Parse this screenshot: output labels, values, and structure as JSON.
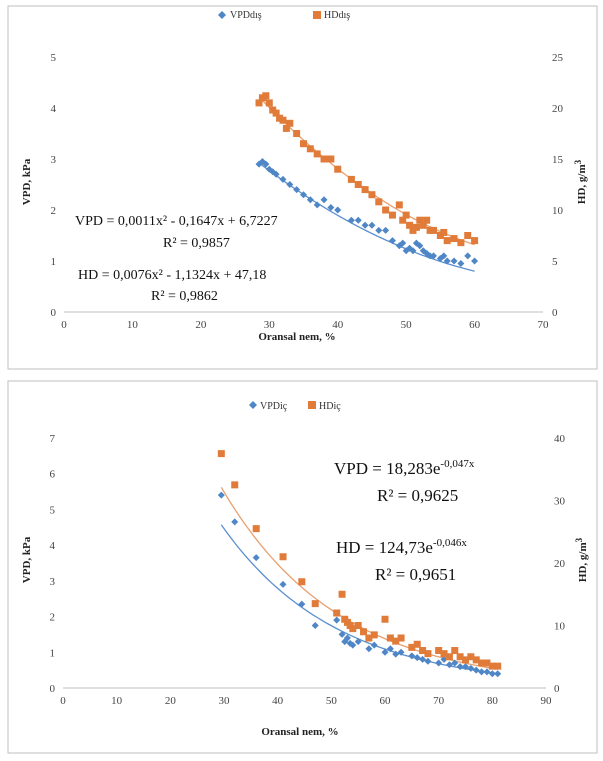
{
  "colors": {
    "vpd": "#4f86c6",
    "hd": "#e07b39",
    "vpd_trend": "#5a8fcf",
    "hd_trend": "#e8a070"
  },
  "chart_data": [
    {
      "type": "scatter",
      "legend": {
        "vpd": "VPDdış",
        "hd": "HDdış",
        "placement": "top-center"
      },
      "xlabel": "Oransal nem, %",
      "ylabel_left": "VPD, kPa",
      "ylabel_right": {
        "text": "HD, g/m",
        "sup": "3"
      },
      "xlim": [
        0,
        70
      ],
      "xticks": [
        0,
        10,
        20,
        30,
        40,
        50,
        60,
        70
      ],
      "ylim_left": [
        0,
        5
      ],
      "yticks_left": [
        0,
        1,
        2,
        3,
        4,
        5
      ],
      "ylim_right": [
        0,
        25
      ],
      "yticks_right": [
        0,
        5,
        10,
        15,
        20,
        25
      ],
      "series": [
        {
          "name": "VPDdış",
          "axis": "left",
          "marker": "diamond",
          "x": [
            28.5,
            29,
            29.5,
            30,
            30.5,
            31,
            32,
            33,
            34,
            35,
            36,
            37,
            38,
            39,
            40,
            42,
            43,
            44,
            45,
            46,
            47,
            48,
            49,
            49.5,
            50,
            50.5,
            51,
            51.5,
            52,
            52.5,
            53,
            53.5,
            54,
            55,
            55.5,
            56,
            57,
            58,
            59,
            60
          ],
          "y": [
            2.9,
            2.95,
            2.9,
            2.8,
            2.75,
            2.7,
            2.6,
            2.5,
            2.4,
            2.3,
            2.2,
            2.1,
            2.2,
            2.05,
            2,
            1.8,
            1.8,
            1.7,
            1.7,
            1.6,
            1.6,
            1.4,
            1.3,
            1.35,
            1.2,
            1.25,
            1.2,
            1.35,
            1.3,
            1.2,
            1.15,
            1.1,
            1.1,
            1.05,
            1.1,
            1,
            1,
            0.95,
            1.1,
            1
          ]
        },
        {
          "name": "HDdış",
          "axis": "right",
          "marker": "square",
          "x": [
            28.5,
            29,
            29.5,
            30,
            30.5,
            31,
            31.5,
            32,
            32.5,
            33,
            34,
            35,
            36,
            37,
            38,
            39,
            40,
            42,
            43,
            44,
            45,
            46,
            47,
            48,
            49,
            49.5,
            50,
            50.5,
            51,
            51.5,
            52,
            52.5,
            53,
            53.5,
            54,
            55,
            55.5,
            56,
            57,
            58,
            59,
            60
          ],
          "y": [
            20.5,
            21,
            21.2,
            20.5,
            19.8,
            19.5,
            19,
            18.8,
            18,
            18.5,
            17.5,
            16.5,
            16,
            15.5,
            15,
            15,
            14,
            13,
            12.5,
            12,
            11.5,
            10.8,
            10,
            9.5,
            10.5,
            9,
            9.5,
            8.5,
            8,
            8.3,
            9,
            8.5,
            9,
            8,
            8,
            7.5,
            7.8,
            7,
            7.2,
            6.8,
            7.5,
            7
          ]
        }
      ],
      "annotations": [
        {
          "text": "VPD = 0,0011x² - 0,1647x + 6,7227"
        },
        {
          "text": "R² = 0,9857"
        },
        {
          "text": "HD = 0,0076x² - 1,1324x + 47,18"
        },
        {
          "text": "R² = 0,9862"
        }
      ],
      "trendlines": [
        {
          "series": "VPDdış",
          "kind": "poly2",
          "coef": [
            0.0011,
            -0.1647,
            6.7227
          ],
          "xrange": [
            28.5,
            60
          ]
        },
        {
          "series": "HDdış",
          "kind": "poly2",
          "coef": [
            0.0076,
            -1.1324,
            47.18
          ],
          "xrange": [
            28.5,
            60
          ]
        }
      ]
    },
    {
      "type": "scatter",
      "legend": {
        "vpd": "VPDiç",
        "hd": "HDiç",
        "placement": "top-center"
      },
      "xlabel": "Oransal nem, %",
      "ylabel_left": "VPD, kPa",
      "ylabel_right": {
        "text": "HD, g/m",
        "sup": "3"
      },
      "xlim": [
        0,
        90
      ],
      "xticks": [
        0,
        10,
        20,
        30,
        40,
        50,
        60,
        70,
        80,
        90
      ],
      "ylim_left": [
        0,
        7
      ],
      "yticks_left": [
        0,
        1,
        2,
        3,
        4,
        5,
        6,
        7
      ],
      "ylim_right": [
        0,
        40
      ],
      "yticks_right": [
        0,
        10,
        20,
        30,
        40
      ],
      "series": [
        {
          "name": "VPDiç",
          "axis": "left",
          "marker": "diamond",
          "x": [
            29.5,
            32,
            36,
            41,
            44.5,
            47,
            51,
            52,
            52.5,
            53,
            53.5,
            54,
            55,
            57,
            58,
            60,
            61,
            62,
            63,
            65,
            66,
            67,
            68,
            70,
            71,
            72,
            73,
            74,
            75,
            76,
            77,
            78,
            79,
            80,
            81
          ],
          "y": [
            5.4,
            4.65,
            3.65,
            2.9,
            2.35,
            1.75,
            1.9,
            1.5,
            1.3,
            1.4,
            1.25,
            1.2,
            1.3,
            1.1,
            1.2,
            1,
            1.1,
            0.95,
            1,
            0.9,
            0.85,
            0.8,
            0.75,
            0.7,
            0.8,
            0.65,
            0.7,
            0.6,
            0.6,
            0.55,
            0.5,
            0.45,
            0.45,
            0.4,
            0.4
          ]
        },
        {
          "name": "HDiç",
          "axis": "right",
          "marker": "square",
          "x": [
            29.5,
            32,
            36,
            41,
            44.5,
            47,
            51,
            52,
            52.5,
            53,
            53.5,
            54,
            55,
            56,
            57,
            58,
            60,
            61,
            62,
            63,
            65,
            66,
            67,
            68,
            70,
            71,
            72,
            73,
            74,
            75,
            76,
            77,
            78,
            79,
            80,
            81
          ],
          "y": [
            37.5,
            32.5,
            25.5,
            21,
            17,
            13.5,
            12,
            15,
            11,
            10.5,
            10,
            9.5,
            10,
            9,
            8,
            8.5,
            11,
            8,
            7.5,
            8,
            6.5,
            7,
            6,
            5.5,
            6,
            5.5,
            5,
            6,
            5,
            4.5,
            5,
            4.5,
            4,
            4,
            3.5,
            3.5
          ]
        }
      ],
      "annotations": [
        {
          "text": "VPD = 18,283e",
          "sup": "-0,047x"
        },
        {
          "text": "R² = 0,9625"
        },
        {
          "text": "HD = 124,73e",
          "sup": "-0,046x"
        },
        {
          "text": "R² = 0,9651"
        }
      ],
      "trendlines": [
        {
          "series": "VPDiç",
          "kind": "exp",
          "a": 18.283,
          "b": -0.047,
          "xrange": [
            29.5,
            81
          ]
        },
        {
          "series": "HDiç",
          "kind": "exp",
          "a": 124.73,
          "b": -0.046,
          "xrange": [
            29.5,
            81
          ]
        }
      ]
    }
  ]
}
